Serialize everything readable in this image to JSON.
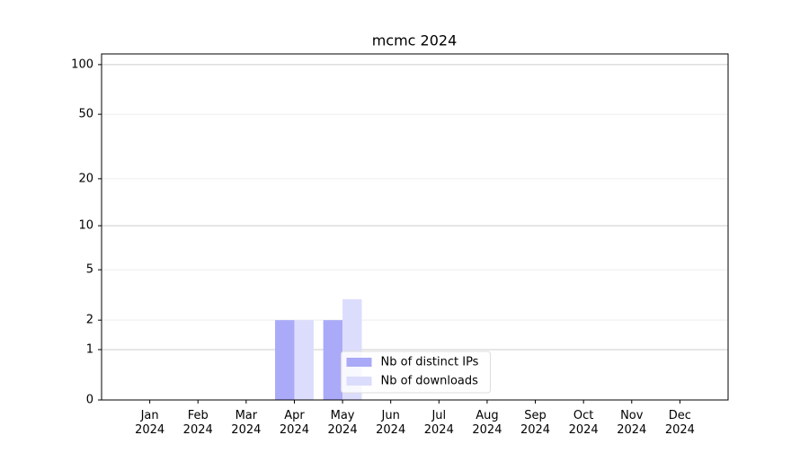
{
  "chart_data": {
    "type": "bar",
    "title": "mcmc 2024",
    "categories": [
      "Jan\n2024",
      "Feb\n2024",
      "Mar\n2024",
      "Apr\n2024",
      "May\n2024",
      "Jun\n2024",
      "Jul\n2024",
      "Aug\n2024",
      "Sep\n2024",
      "Oct\n2024",
      "Nov\n2024",
      "Dec\n2024"
    ],
    "series": [
      {
        "name": "Nb of distinct IPs",
        "color": "#aaaaf8",
        "values": [
          0,
          0,
          0,
          2,
          2,
          0,
          0,
          0,
          0,
          0,
          0,
          0
        ]
      },
      {
        "name": "Nb of downloads",
        "color": "#dcdcfc",
        "values": [
          0,
          0,
          0,
          2,
          3,
          0,
          0,
          0,
          0,
          0,
          0,
          0
        ]
      }
    ],
    "yscale": "log1p",
    "ylim": [
      0,
      116
    ],
    "yticks": [
      0,
      1,
      2,
      5,
      10,
      20,
      50,
      100
    ],
    "grid": true,
    "legend": "lower center"
  }
}
